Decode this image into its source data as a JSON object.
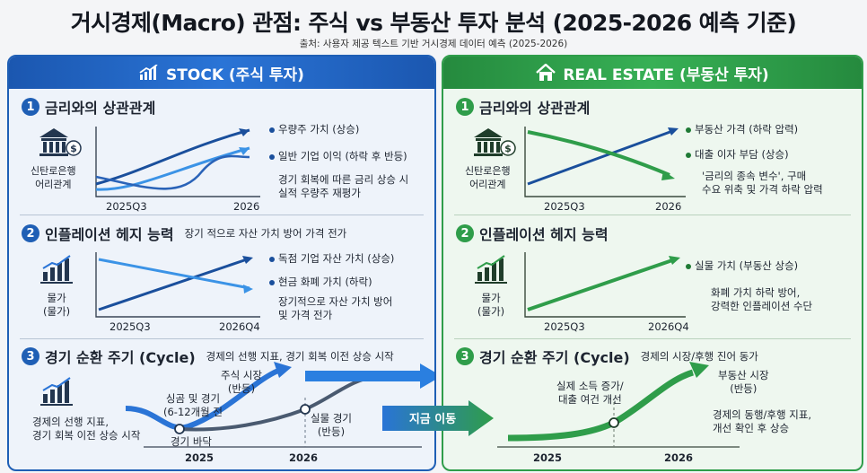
{
  "title": "거시경제(Macro) 관점: 주식 vs 부동산 투자 분석 (2025-2026 예측 기준)",
  "subtitle": "출처: 사용자 제공 텍스트 기반 거시경제 데이터 예측 (2025-2026)",
  "colors": {
    "stock": "#1f5fb5",
    "stock_light": "#3b93e6",
    "real_estate": "#2f9d4a",
    "real_estate_light": "#4cc262"
  },
  "stock": {
    "header": "STOCK (주식 투자)",
    "header_icon": "chart-up-icon",
    "s1": {
      "num": "1",
      "title": "금리와의 상관관계",
      "icon_label": "신탄로은행\n어리관계",
      "x_start": "2025Q3",
      "x_end": "2026",
      "line1": "우량주 가치 (상승)",
      "line2": "일반 기업 이익 (하락 후 반등)",
      "note": "경기 회복에 따른 금리 상승 시\n실적 우량주 재평가"
    },
    "s2": {
      "num": "2",
      "title": "인플레이션 헤지 능력",
      "note_inline": "장기 적으로 자산 가치 방어 가격 전가",
      "icon_label": "물가\n(물가)",
      "x_start": "2025Q3",
      "x_end": "2026Q4",
      "line1": "독점 기업 자산 가치 (상승)",
      "line2": "현금 화폐 가치 (하락)",
      "note": "장기적으로 자산 가치 방어\n및 가격 전가"
    },
    "s3": {
      "num": "3",
      "title": "경기 순환 주기 (Cycle)",
      "note_inline": "경제의 선행 지표, 경기 회복 이전 상승 시작",
      "market_label": "주식 시장\n(반등)",
      "boom_label": "싱곰 및 경기\n(6-12개월 전",
      "bottom_label": "경기 바닥",
      "real_label": "실물 경기\n(반등)",
      "left_note": "경제의 선행 지표,\n경기 회복 이전 상승 시작",
      "x_start": "2025",
      "x_end": "2026"
    }
  },
  "real_estate": {
    "header": "REAL ESTATE (부동산 투자)",
    "header_icon": "house-icon",
    "s1": {
      "num": "1",
      "title": "금리와의 상관관계",
      "icon_label": "신탄로은행\n어리관계",
      "x_start": "2025Q3",
      "x_end": "2026",
      "line1": "부동산 가격 (하락 압력)",
      "line2": "대출 이자 부담 (상승)",
      "note": "'금리의 종속 변수', 구매\n수요 위축 및 가격 하락 압력"
    },
    "s2": {
      "num": "2",
      "title": "인플레이션 헤지 능력",
      "icon_label": "물가\n(물가)",
      "x_start": "2025Q3",
      "x_end": "2026Q4",
      "line1": "실물 가치 (부동산 상승)",
      "note": "화폐 가치 하락 방어,\n강력한 인플레이션 수단"
    },
    "s3": {
      "num": "3",
      "title": "경기 순환 주기 (Cycle)",
      "note_inline": "경제의 시장/후행 진어 동가",
      "income_label": "실제 소득 증가/\n대출 여건 개선",
      "market_label": "부동산 시장\n(반등)",
      "note": "경제의 동행/후행 지표,\n개선 확인 후 상승",
      "x_start": "2025",
      "x_end": "2026"
    }
  },
  "now_label": "지금 이동"
}
